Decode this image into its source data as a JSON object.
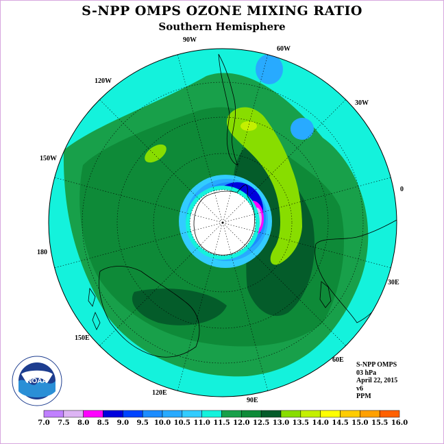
{
  "title": "S-NPP OMPS OZONE MIXING RATIO",
  "subtitle": "Southern Hemisphere",
  "longitude_labels": [
    "90W",
    "60W",
    "30W",
    "0",
    "30E",
    "60E",
    "90E",
    "120E",
    "150E",
    "180",
    "150W",
    "120W"
  ],
  "info": {
    "line1": "S-NPP OMPS",
    "line2": "03 hPa",
    "line3": "April 22, 2015",
    "line4": "v6",
    "line5": "PPM"
  },
  "colorbar": {
    "labels": [
      "7.0",
      "7.5",
      "8.0",
      "8.5",
      "9.0",
      "9.5",
      "10.0",
      "10.5",
      "11.0",
      "11.5",
      "12.0",
      "12.5",
      "13.0",
      "13.5",
      "14.0",
      "14.5",
      "15.0",
      "15.5",
      "16.0"
    ],
    "colors": [
      "#c080ff",
      "#ddb4f4",
      "#ff00ff",
      "#0000dd",
      "#0044ff",
      "#1c8cff",
      "#28aaff",
      "#32ccff",
      "#14f2dc",
      "#18a04a",
      "#0e8a38",
      "#045c2a",
      "#88dd00",
      "#c4f000",
      "#ffff00",
      "#ffcc00",
      "#ffa000",
      "#ff6000",
      "#ff0000",
      "#bb0000",
      "#8b5a3c"
    ]
  },
  "logo": {
    "text": "NOAA",
    "ring_text": "NATIONAL OCEANIC AND ATMOSPHERIC ADMINISTRATION",
    "bottom_text": "U.S. DEPARTMENT OF COMMERCE"
  }
}
